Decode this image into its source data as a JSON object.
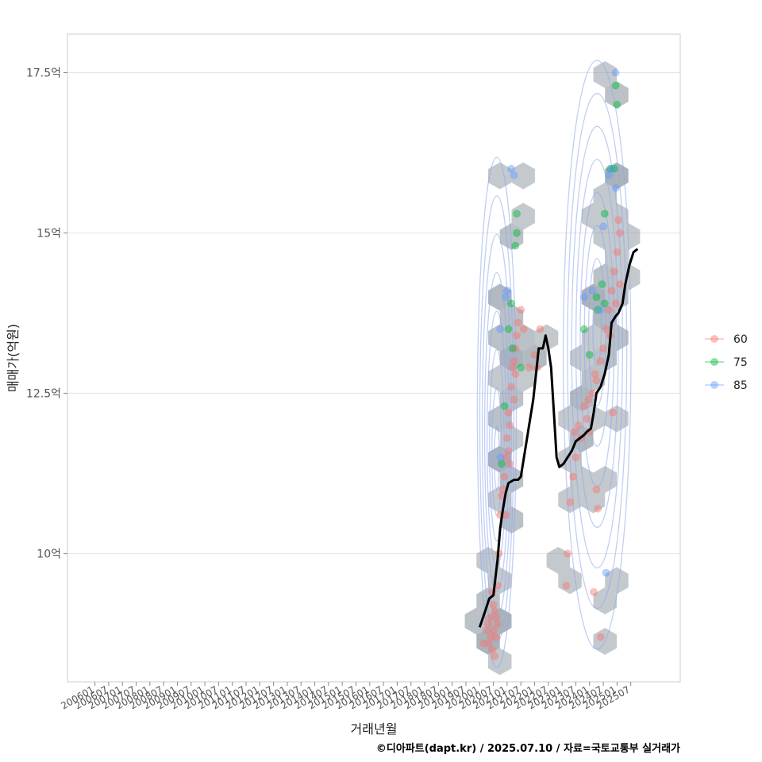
{
  "chart_data": {
    "type": "scatter",
    "title": "",
    "xlabel": "거래년월",
    "ylabel": "매매가(억원)",
    "caption": "©디아파트(dapt.kr) / 2025.07.10 / 자료=국토교통부 실거래가",
    "x_tick_labels": [
      "200601",
      "200607",
      "200701",
      "200707",
      "200801",
      "200807",
      "200901",
      "200907",
      "201001",
      "201007",
      "201101",
      "201107",
      "201201",
      "201207",
      "201301",
      "201307",
      "201401",
      "201407",
      "201501",
      "201507",
      "201601",
      "201607",
      "201701",
      "201707",
      "201801",
      "201807",
      "201901",
      "201907",
      "202001",
      "202007",
      "202101",
      "202107",
      "202201",
      "202207",
      "202301",
      "202307",
      "202401",
      "202407",
      "202501",
      "202507"
    ],
    "y_tick_labels": [
      "10억",
      "12.5억",
      "15억",
      "17.5억"
    ],
    "y_tick_values": [
      10,
      12.5,
      15,
      17.5
    ],
    "ylim": [
      8.0,
      18.1
    ],
    "xlim_index": [
      -2.0,
      42.6
    ],
    "grid": true,
    "legend": {
      "position": "right",
      "title": "",
      "entries": [
        {
          "label": "60",
          "color": "#F8766D"
        },
        {
          "label": "75",
          "color": "#00BA38"
        },
        {
          "label": "85",
          "color": "#619CFF"
        }
      ]
    },
    "series": [
      {
        "name": "60",
        "color": "#F8766D",
        "points": [
          [
            28.3,
            8.6
          ],
          [
            28.5,
            8.8
          ],
          [
            28.6,
            8.9
          ],
          [
            28.7,
            9.0
          ],
          [
            28.8,
            8.7
          ],
          [
            28.9,
            8.5
          ],
          [
            29.0,
            9.2
          ],
          [
            29.1,
            9.1
          ],
          [
            29.2,
            9.0
          ],
          [
            29.0,
            8.8
          ],
          [
            28.7,
            8.6
          ],
          [
            29.1,
            8.4
          ],
          [
            29.2,
            8.7
          ],
          [
            28.9,
            9.4
          ],
          [
            29.3,
            9.5
          ],
          [
            29.3,
            8.9
          ],
          [
            29.4,
            10.0
          ],
          [
            29.5,
            10.6
          ],
          [
            29.6,
            10.9
          ],
          [
            29.8,
            11.2
          ],
          [
            29.9,
            11.5
          ],
          [
            30.0,
            11.8
          ],
          [
            30.1,
            12.2
          ],
          [
            30.2,
            11.4
          ],
          [
            29.7,
            11.0
          ],
          [
            30.3,
            12.6
          ],
          [
            30.4,
            12.9
          ],
          [
            30.5,
            13.0
          ],
          [
            30.6,
            12.8
          ],
          [
            30.6,
            13.2
          ],
          [
            30.7,
            13.4
          ],
          [
            30.5,
            12.4
          ],
          [
            30.2,
            12.0
          ],
          [
            30.8,
            13.6
          ],
          [
            31.0,
            13.8
          ],
          [
            31.2,
            13.5
          ],
          [
            31.6,
            12.9
          ],
          [
            32.0,
            13.1
          ],
          [
            32.4,
            13.5
          ],
          [
            32.2,
            12.9
          ],
          [
            30.1,
            11.6
          ],
          [
            29.9,
            10.6
          ],
          [
            34.3,
            9.5
          ],
          [
            34.4,
            10.0
          ],
          [
            34.6,
            10.8
          ],
          [
            34.8,
            11.2
          ],
          [
            35.0,
            11.5
          ],
          [
            35.2,
            12.0
          ],
          [
            35.4,
            11.8
          ],
          [
            35.6,
            12.3
          ],
          [
            35.8,
            12.1
          ],
          [
            36.0,
            11.9
          ],
          [
            36.2,
            12.5
          ],
          [
            36.4,
            12.8
          ],
          [
            36.5,
            11.0
          ],
          [
            36.6,
            10.7
          ],
          [
            36.8,
            13.0
          ],
          [
            37.0,
            13.2
          ],
          [
            37.2,
            13.5
          ],
          [
            37.4,
            13.8
          ],
          [
            37.6,
            14.1
          ],
          [
            37.8,
            14.4
          ],
          [
            38.0,
            14.7
          ],
          [
            38.2,
            15.0
          ],
          [
            38.1,
            15.2
          ],
          [
            37.9,
            13.9
          ],
          [
            37.5,
            13.4
          ],
          [
            36.3,
            9.4
          ],
          [
            36.8,
            8.7
          ],
          [
            37.7,
            12.2
          ],
          [
            38.2,
            14.2
          ],
          [
            35.9,
            12.4
          ],
          [
            36.5,
            12.7
          ],
          [
            34.9,
            11.9
          ]
        ]
      },
      {
        "name": "75",
        "color": "#00BA38",
        "points": [
          [
            29.6,
            11.4
          ],
          [
            29.8,
            12.3
          ],
          [
            30.1,
            13.5
          ],
          [
            30.3,
            13.9
          ],
          [
            30.6,
            14.8
          ],
          [
            30.7,
            15.0
          ],
          [
            30.7,
            15.3
          ],
          [
            31.0,
            12.9
          ],
          [
            30.4,
            13.2
          ],
          [
            35.6,
            13.5
          ],
          [
            36.0,
            13.1
          ],
          [
            36.6,
            13.8
          ],
          [
            36.9,
            14.2
          ],
          [
            37.1,
            15.3
          ],
          [
            37.1,
            13.9
          ],
          [
            37.5,
            16.0
          ],
          [
            37.8,
            16.0
          ],
          [
            37.9,
            17.3
          ],
          [
            38.0,
            17.0
          ],
          [
            36.5,
            14.0
          ]
        ]
      },
      {
        "name": "85",
        "color": "#619CFF",
        "points": [
          [
            29.5,
            11.5
          ],
          [
            29.9,
            14.0
          ],
          [
            30.0,
            14.1
          ],
          [
            30.3,
            16.0
          ],
          [
            30.5,
            15.9
          ],
          [
            29.5,
            13.5
          ],
          [
            35.6,
            14.0
          ],
          [
            36.2,
            14.1
          ],
          [
            37.0,
            15.1
          ],
          [
            37.4,
            15.9
          ],
          [
            37.6,
            16.0
          ],
          [
            37.9,
            15.7
          ],
          [
            37.9,
            17.5
          ],
          [
            37.2,
            9.7
          ],
          [
            36.8,
            13.8
          ]
        ]
      }
    ],
    "trend_line": {
      "name": "median",
      "color": "#000000",
      "points": [
        [
          28.0,
          8.85
        ],
        [
          28.4,
          9.1
        ],
        [
          28.7,
          9.3
        ],
        [
          29.0,
          9.35
        ],
        [
          29.3,
          9.9
        ],
        [
          29.5,
          10.4
        ],
        [
          29.7,
          10.7
        ],
        [
          29.9,
          10.95
        ],
        [
          30.1,
          11.1
        ],
        [
          30.5,
          11.15
        ],
        [
          30.8,
          11.15
        ],
        [
          31.0,
          11.2
        ],
        [
          31.3,
          11.6
        ],
        [
          31.6,
          12.0
        ],
        [
          31.9,
          12.4
        ],
        [
          32.1,
          12.8
        ],
        [
          32.3,
          13.2
        ],
        [
          32.6,
          13.2
        ],
        [
          32.8,
          13.4
        ],
        [
          33.0,
          13.2
        ],
        [
          33.2,
          12.9
        ],
        [
          33.4,
          12.2
        ],
        [
          33.6,
          11.5
        ],
        [
          33.8,
          11.35
        ],
        [
          34.1,
          11.4
        ],
        [
          34.4,
          11.5
        ],
        [
          34.7,
          11.6
        ],
        [
          35.0,
          11.75
        ],
        [
          35.3,
          11.8
        ],
        [
          35.6,
          11.85
        ],
        [
          35.8,
          11.9
        ],
        [
          36.1,
          11.95
        ],
        [
          36.3,
          12.2
        ],
        [
          36.5,
          12.5
        ],
        [
          36.8,
          12.6
        ],
        [
          37.1,
          12.8
        ],
        [
          37.4,
          13.1
        ],
        [
          37.6,
          13.6
        ],
        [
          37.9,
          13.7
        ],
        [
          38.1,
          13.75
        ],
        [
          38.4,
          13.9
        ],
        [
          38.6,
          14.2
        ],
        [
          38.9,
          14.5
        ],
        [
          39.2,
          14.7
        ],
        [
          39.5,
          14.75
        ]
      ]
    },
    "hexbin_density_regions": [
      {
        "x_range": [
          27.9,
          30.6
        ],
        "y_range": [
          8.3,
          16.1
        ]
      },
      {
        "x_range": [
          34.2,
          38.9
        ],
        "y_range": [
          8.6,
          17.6
        ]
      }
    ]
  }
}
